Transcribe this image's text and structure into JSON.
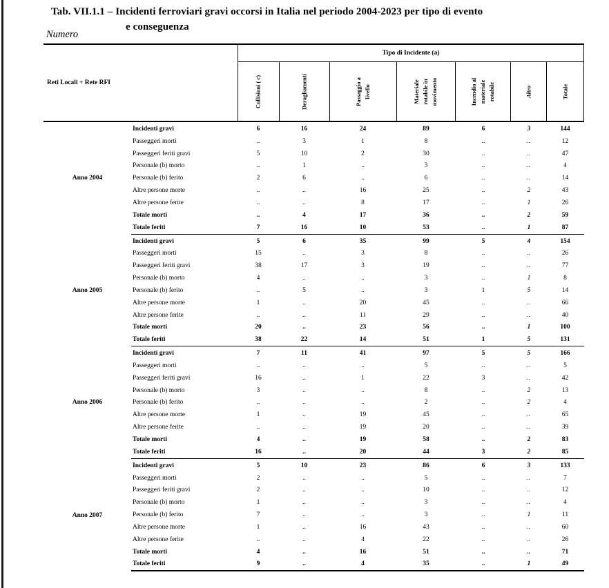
{
  "page": {
    "title_line1": "Tab. VII.1.1 – Incidenti ferroviari gravi occorsi in Italia nel periodo 2004-2023 per tipo di evento",
    "title_line2": "e conseguenza",
    "subtitle": "Numero"
  },
  "table": {
    "stub_header": "Reti Locali + Rete RFI",
    "col_group_header": "Tipo di Incidente (a)",
    "columns": [
      "Collisioni ( c)",
      "Deragliamenti",
      "Passaggio a livello",
      "Materiale rotabile in movimento",
      "Incendio al materiale rotabile",
      "Altro",
      "Totale"
    ],
    "row_labels": [
      "Incidenti gravi",
      "Passeggeri morti",
      "Passeggeri feriti gravi",
      "Personale (b) morto",
      "Personale (b) ferito",
      "Altre persone morte",
      "Altre persone ferite",
      "Totale morti",
      "Totale feriti"
    ],
    "bold_row_indices": [
      0,
      7,
      8
    ],
    "italic_col_index": 5,
    "groups": [
      {
        "year": "Anno 2004",
        "rows": [
          [
            "6",
            "16",
            "24",
            "89",
            "6",
            "3",
            "144"
          ],
          [
            "..",
            "3",
            "1",
            "8",
            "..",
            "..",
            "12"
          ],
          [
            "5",
            "10",
            "2",
            "30",
            "..",
            "..",
            "47"
          ],
          [
            "..",
            "1",
            "..",
            "3",
            "..",
            "..",
            "4"
          ],
          [
            "2",
            "6",
            "..",
            "6",
            "..",
            "..",
            "14"
          ],
          [
            "..",
            "..",
            "16",
            "25",
            "..",
            "2",
            "43"
          ],
          [
            "..",
            "..",
            "8",
            "17",
            "..",
            "1",
            "26"
          ],
          [
            "..",
            "4",
            "17",
            "36",
            "..",
            "2",
            "59"
          ],
          [
            "7",
            "16",
            "10",
            "53",
            "..",
            "1",
            "87"
          ]
        ]
      },
      {
        "year": "Anno 2005",
        "rows": [
          [
            "5",
            "6",
            "35",
            "99",
            "5",
            "4",
            "154"
          ],
          [
            "15",
            "..",
            "3",
            "8",
            "..",
            "..",
            "26"
          ],
          [
            "38",
            "17",
            "3",
            "19",
            "..",
            "..",
            "77"
          ],
          [
            "4",
            "..",
            "..",
            "3",
            "..",
            "1",
            "8"
          ],
          [
            "..",
            "5",
            "..",
            "3",
            "1",
            "5",
            "14"
          ],
          [
            "1",
            "..",
            "20",
            "45",
            "..",
            "..",
            "66"
          ],
          [
            "..",
            "..",
            "11",
            "29",
            "..",
            "..",
            "40"
          ],
          [
            "20",
            "..",
            "23",
            "56",
            "..",
            "1",
            "100"
          ],
          [
            "38",
            "22",
            "14",
            "51",
            "1",
            "5",
            "131"
          ]
        ]
      },
      {
        "year": "Anno 2006",
        "rows": [
          [
            "7",
            "11",
            "41",
            "97",
            "5",
            "5",
            "166"
          ],
          [
            "..",
            "..",
            "..",
            "5",
            "..",
            "..",
            "5"
          ],
          [
            "16",
            "..",
            "1",
            "22",
            "3",
            "..",
            "42"
          ],
          [
            "3",
            "..",
            "..",
            "8",
            "..",
            "2",
            "13"
          ],
          [
            "..",
            "..",
            "..",
            "2",
            "..",
            "2",
            "4"
          ],
          [
            "1",
            "..",
            "19",
            "45",
            "..",
            "..",
            "65"
          ],
          [
            "..",
            "..",
            "19",
            "20",
            "..",
            "..",
            "39"
          ],
          [
            "4",
            "..",
            "19",
            "58",
            "..",
            "2",
            "83"
          ],
          [
            "16",
            "..",
            "20",
            "44",
            "3",
            "2",
            "85"
          ]
        ]
      },
      {
        "year": "Anno 2007",
        "rows": [
          [
            "5",
            "10",
            "23",
            "86",
            "6",
            "3",
            "133"
          ],
          [
            "2",
            "..",
            "..",
            "5",
            "..",
            "..",
            "7"
          ],
          [
            "2",
            "..",
            "..",
            "10",
            "..",
            "..",
            "12"
          ],
          [
            "1",
            "..",
            "..",
            "3",
            "..",
            "..",
            "4"
          ],
          [
            "7",
            "..",
            "..",
            "3",
            "..",
            "1",
            "11"
          ],
          [
            "1",
            "..",
            "16",
            "43",
            "..",
            "..",
            "60"
          ],
          [
            "..",
            "..",
            "4",
            "22",
            "..",
            "..",
            "26"
          ],
          [
            "4",
            "..",
            "16",
            "51",
            "..",
            "..",
            "71"
          ],
          [
            "9",
            "..",
            "4",
            "35",
            "..",
            "1",
            "49"
          ]
        ]
      }
    ]
  }
}
